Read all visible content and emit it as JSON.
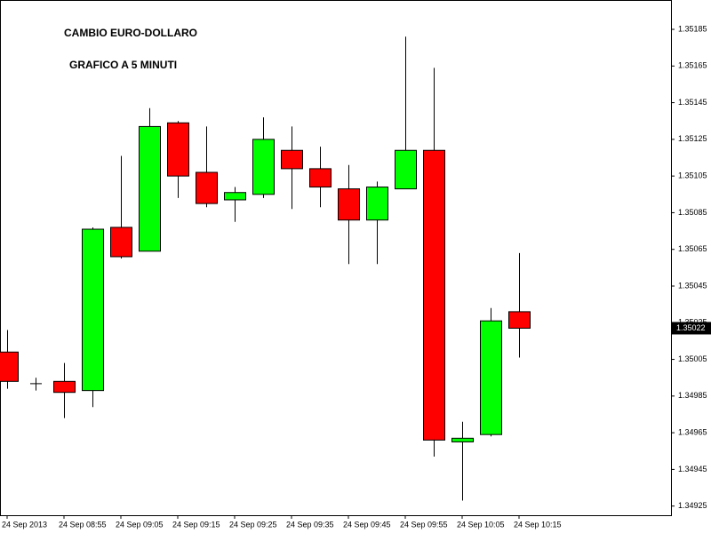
{
  "chart_data": {
    "type": "candlestick",
    "title": "CAMBIO EURO-DOLLARO",
    "subtitle": "GRAFICO A 5 MINUTI",
    "categories": [
      "24 Sep 2013",
      null,
      "24 Sep 08:55",
      null,
      "24 Sep 09:05",
      null,
      "24 Sep 09:15",
      null,
      "24 Sep 09:25",
      null,
      "24 Sep 09:35",
      null,
      "24 Sep 09:45",
      null,
      "24 Sep 09:55",
      null,
      "24 Sep 10:05",
      null,
      "24 Sep 10:15"
    ],
    "open": [
      1.35009,
      1.34992,
      1.34993,
      1.34988,
      1.35077,
      1.35064,
      1.35134,
      1.35107,
      1.35092,
      1.35095,
      1.35119,
      1.35109,
      1.35098,
      1.35081,
      1.35098,
      1.35119,
      1.3496,
      1.34964,
      1.35031
    ],
    "high": [
      1.35021,
      1.34995,
      1.35003,
      1.35077,
      1.35116,
      1.35142,
      1.35135,
      1.35132,
      1.35099,
      1.35137,
      1.35132,
      1.35121,
      1.35111,
      1.35102,
      1.35181,
      1.35164,
      1.34971,
      1.35033,
      1.35063
    ],
    "low": [
      1.34989,
      1.34988,
      1.34973,
      1.34979,
      1.3506,
      1.35064,
      1.35093,
      1.35088,
      1.3508,
      1.35093,
      1.35087,
      1.35088,
      1.35057,
      1.35057,
      1.35098,
      1.34952,
      1.34928,
      1.34963,
      1.35006
    ],
    "close": [
      1.34993,
      1.34992,
      1.34987,
      1.35076,
      1.35061,
      1.35132,
      1.35105,
      1.3509,
      1.35096,
      1.35125,
      1.35109,
      1.35099,
      1.35081,
      1.35099,
      1.35119,
      1.34961,
      1.34962,
      1.35026,
      1.35022
    ],
    "up_color": "#00ff00",
    "down_color": "#ff0000",
    "last_price": 1.35022,
    "ylim": [
      1.3492,
      1.35201
    ],
    "yticks": [
      1.34925,
      1.34945,
      1.34965,
      1.34985,
      1.35005,
      1.35025,
      1.35045,
      1.35065,
      1.35085,
      1.35105,
      1.35125,
      1.35145,
      1.35165,
      1.35185
    ],
    "grid": false
  }
}
